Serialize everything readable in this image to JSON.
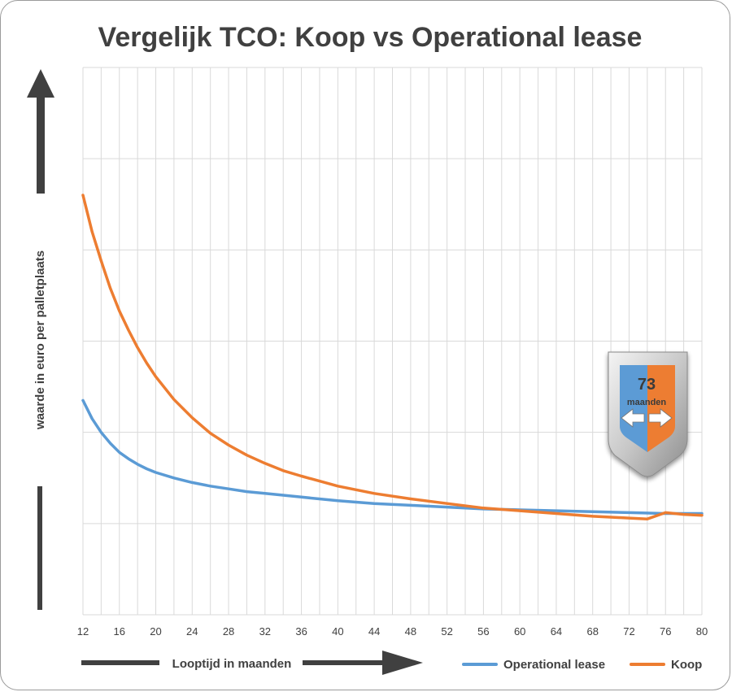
{
  "chart_data": {
    "type": "line",
    "title": "Vergelijk TCO: Koop vs Operational lease",
    "xlabel": "Looptijd in maanden",
    "ylabel": "waarde in euro  per palletplaats",
    "xlim": [
      12,
      80
    ],
    "x_ticks": [
      12,
      16,
      20,
      24,
      28,
      32,
      36,
      40,
      44,
      48,
      52,
      56,
      60,
      64,
      68,
      72,
      76,
      80
    ],
    "ylim": [
      -1,
      5
    ],
    "y_tick_labels": "none",
    "grid": true,
    "legend_position": "bottom-right",
    "series": [
      {
        "name": "Operational lease",
        "color": "#5b9bd5",
        "x": [
          12,
          13,
          14,
          15,
          16,
          17,
          18,
          19,
          20,
          22,
          24,
          26,
          28,
          30,
          32,
          36,
          40,
          44,
          48,
          52,
          56,
          60,
          64,
          68,
          72,
          76,
          80
        ],
        "y": [
          1.35,
          1.15,
          1.0,
          0.88,
          0.78,
          0.71,
          0.65,
          0.6,
          0.56,
          0.5,
          0.45,
          0.41,
          0.38,
          0.35,
          0.33,
          0.29,
          0.25,
          0.22,
          0.2,
          0.18,
          0.16,
          0.15,
          0.14,
          0.13,
          0.12,
          0.11,
          0.11
        ]
      },
      {
        "name": "Koop",
        "color": "#ed7d31",
        "x": [
          12,
          13,
          14,
          15,
          16,
          17,
          18,
          19,
          20,
          22,
          24,
          26,
          28,
          30,
          32,
          34,
          36,
          40,
          44,
          48,
          52,
          56,
          60,
          64,
          68,
          72,
          74,
          76,
          78,
          80
        ],
        "y": [
          3.6,
          3.2,
          2.88,
          2.58,
          2.33,
          2.12,
          1.93,
          1.76,
          1.61,
          1.36,
          1.16,
          0.99,
          0.86,
          0.75,
          0.66,
          0.58,
          0.52,
          0.41,
          0.33,
          0.27,
          0.22,
          0.17,
          0.14,
          0.11,
          0.08,
          0.06,
          0.05,
          0.12,
          0.1,
          0.09
        ]
      }
    ],
    "badge": {
      "value": "73",
      "unit": "maanden",
      "left_color": "#5b9bd5",
      "right_color": "#ed7d31"
    }
  }
}
